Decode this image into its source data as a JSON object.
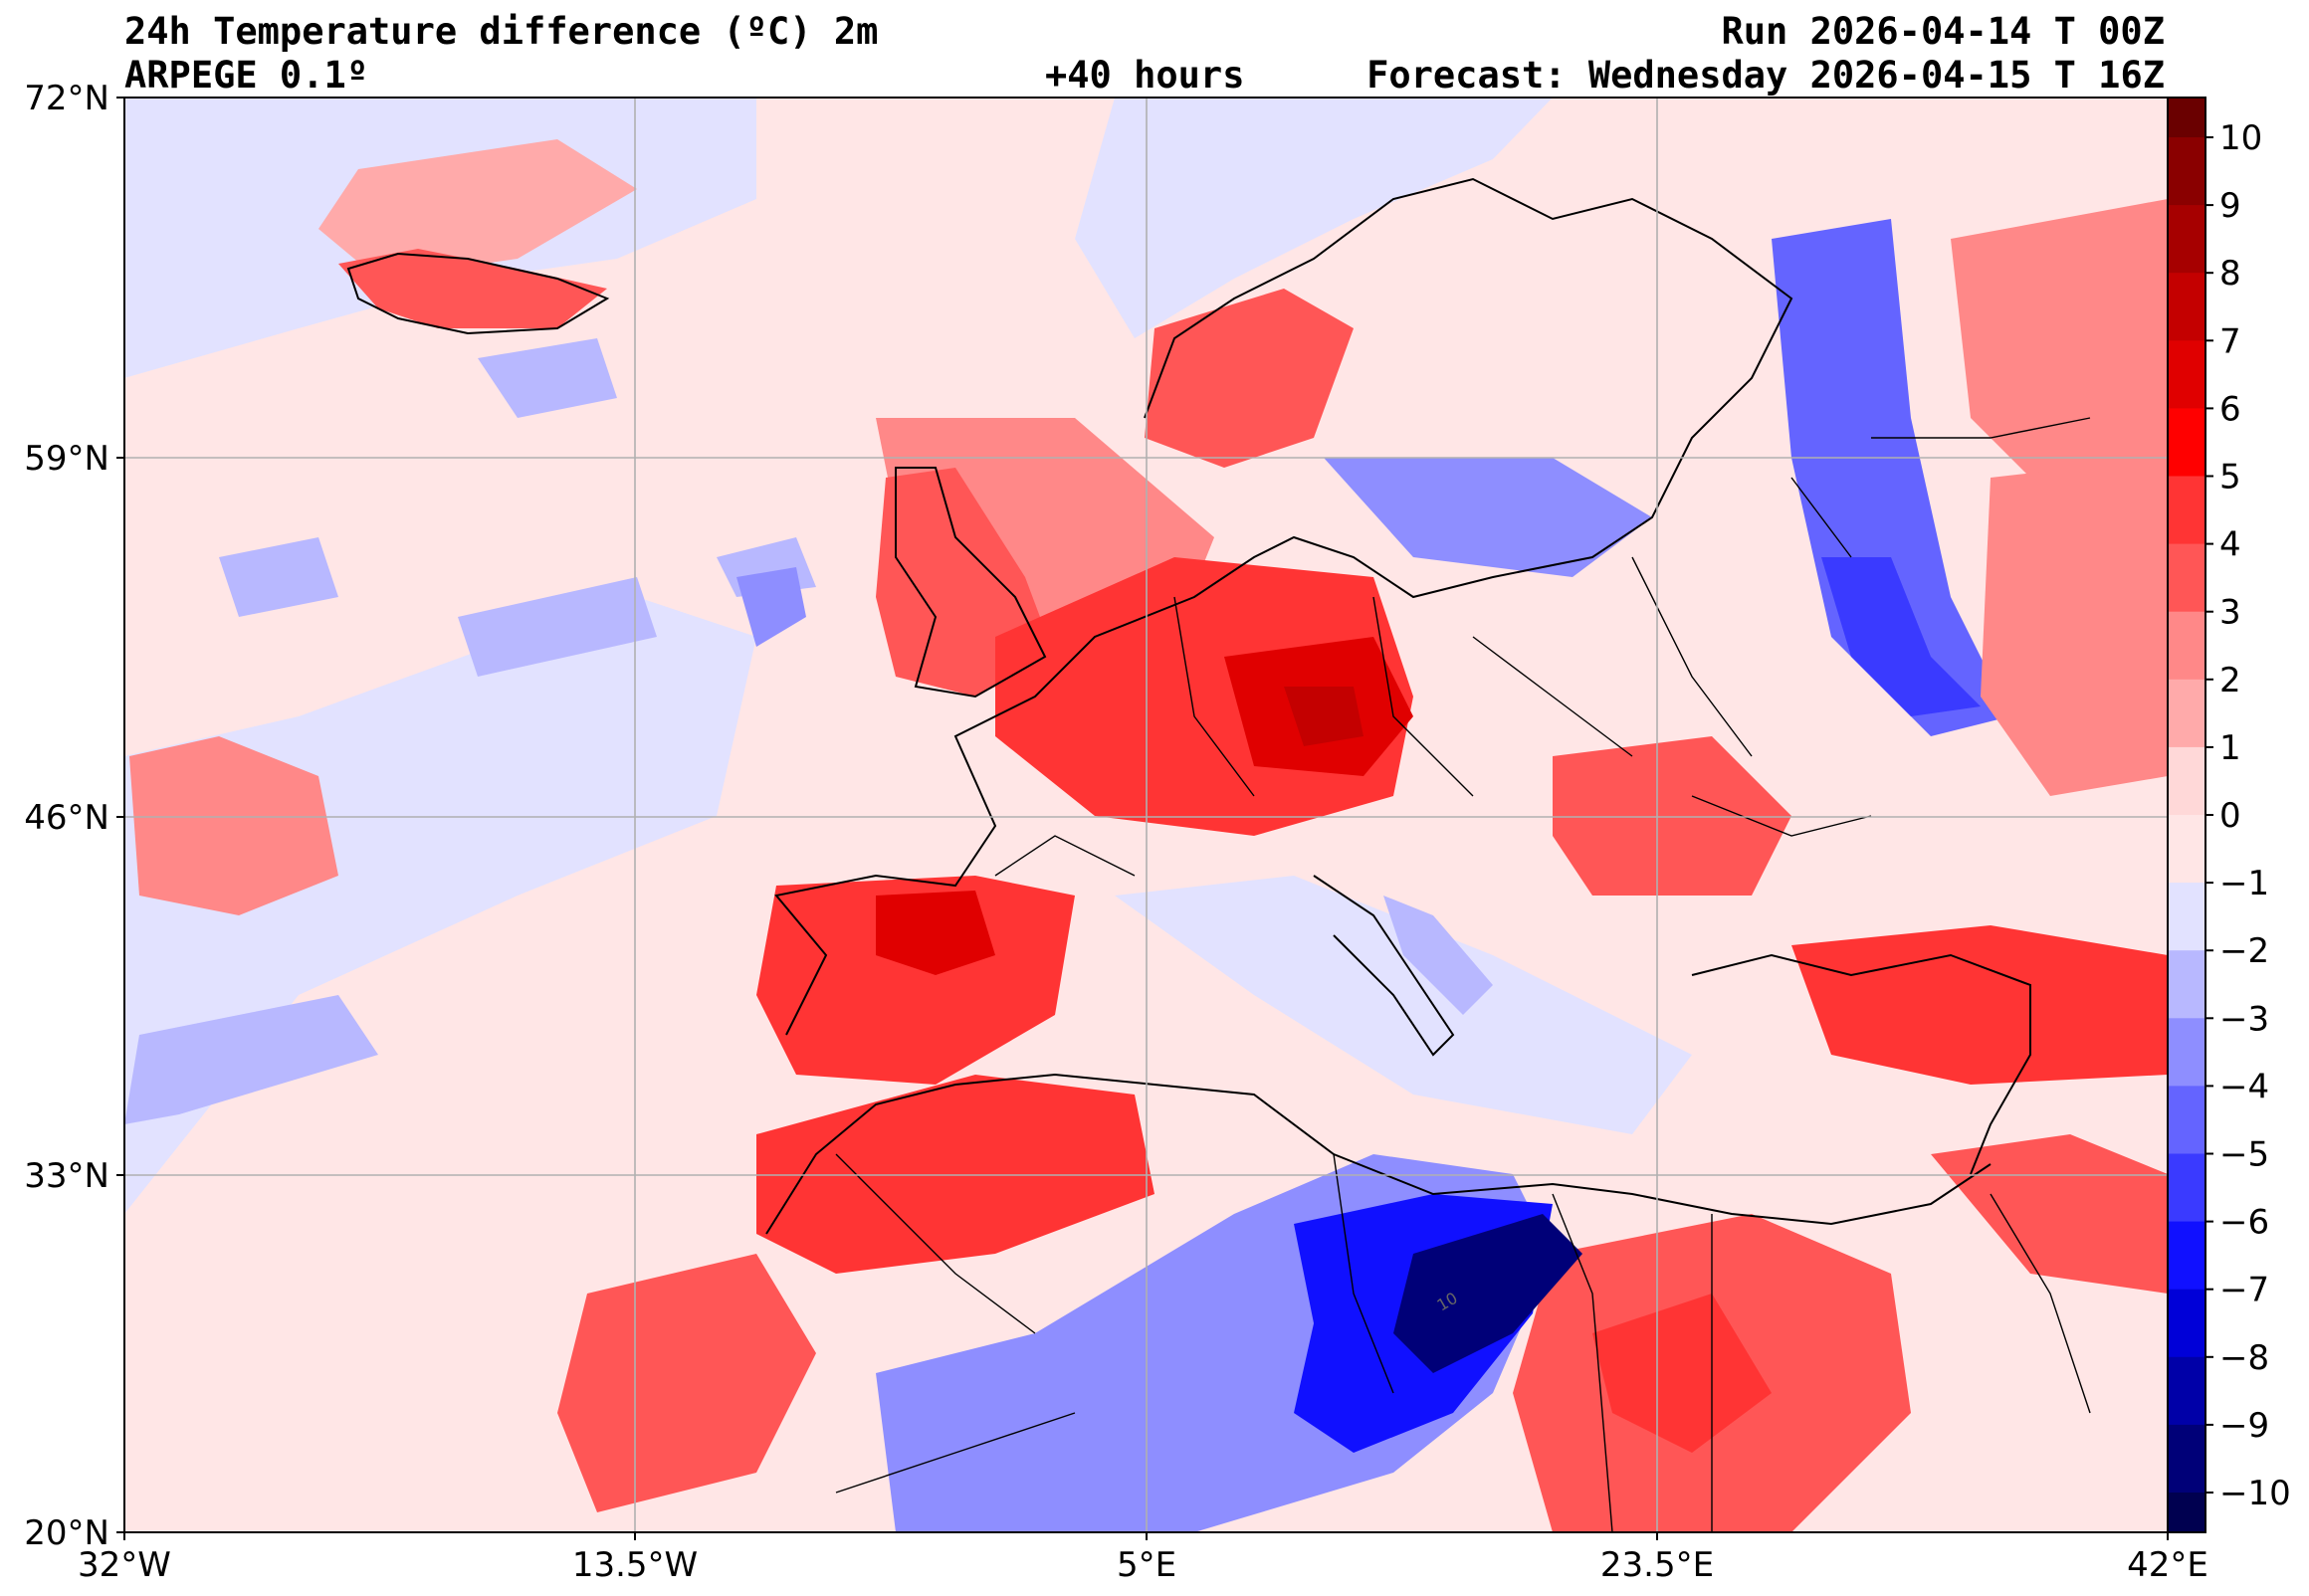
{
  "header": {
    "title": "24h Temperature difference (ºC) 2m",
    "model": "ARPEGE 0.1º",
    "lead_time": "+40 hours",
    "run": "Run 2026-04-14 T 00Z",
    "forecast": "Forecast: Wednesday 2026-04-15 T 16Z"
  },
  "map": {
    "lat_labels": [
      "72°N",
      "59°N",
      "46°N",
      "33°N",
      "20°N"
    ],
    "lon_labels": [
      "32°W",
      "13.5°W",
      "5°E",
      "23.5°E",
      "42°E"
    ],
    "extent": {
      "lon": [
        -32,
        42
      ],
      "lat": [
        20,
        72
      ]
    },
    "contour_label": "10"
  },
  "colorbar": {
    "ticks": [
      "10",
      "9",
      "8",
      "7",
      "6",
      "5",
      "4",
      "3",
      "2",
      "1",
      "0",
      "−1",
      "−2",
      "−3",
      "−4",
      "−5",
      "−6",
      "−7",
      "−8",
      "−9",
      "−10"
    ],
    "colors": [
      "#6a0000",
      "#8a0000",
      "#a60000",
      "#c40000",
      "#e00000",
      "#ff0000",
      "#ff3434",
      "#ff5656",
      "#ff8888",
      "#ffaaaa",
      "#ffd8d8",
      "#ffe6e6",
      "#e2e2ff",
      "#b8b8ff",
      "#8e8eff",
      "#6464ff",
      "#3a3aff",
      "#1010ff",
      "#0000d8",
      "#0000a8",
      "#000078",
      "#000050"
    ]
  }
}
